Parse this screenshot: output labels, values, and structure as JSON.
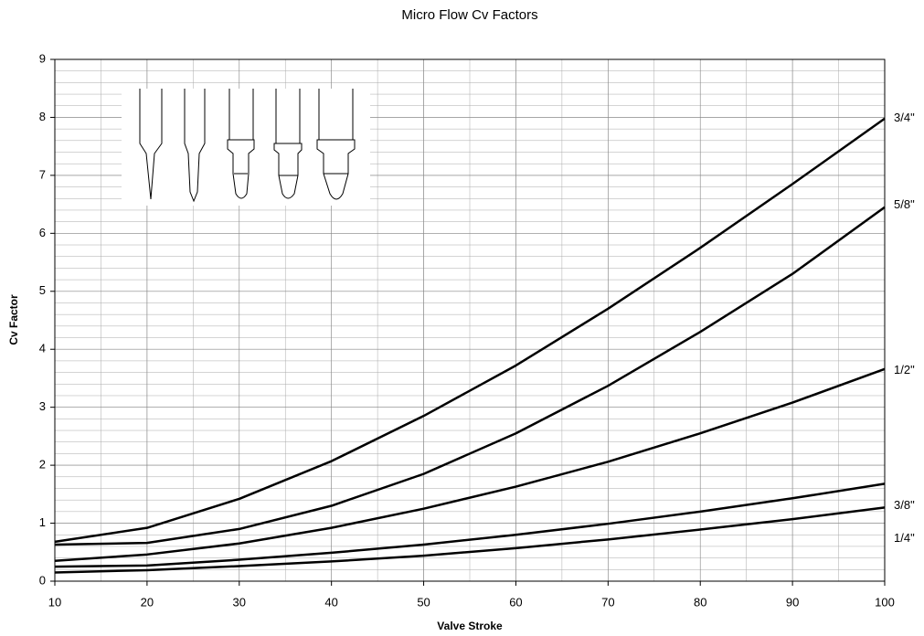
{
  "chart_data": {
    "type": "line",
    "title": "Micro Flow Cv Factors",
    "x_label": "Valve Stroke",
    "y_label": "Cv Factor",
    "x": [
      10,
      20,
      30,
      40,
      50,
      60,
      70,
      80,
      90,
      100
    ],
    "series": [
      {
        "name": "3/4\"",
        "color": "#000000",
        "values": [
          0.68,
          0.92,
          1.42,
          2.07,
          2.85,
          3.72,
          4.7,
          5.75,
          6.85,
          7.98
        ]
      },
      {
        "name": "5/8\"",
        "color": "#000000",
        "values": [
          0.63,
          0.66,
          0.9,
          1.3,
          1.85,
          2.55,
          3.37,
          4.3,
          5.3,
          6.45
        ]
      },
      {
        "name": "1/2\"",
        "color": "#000000",
        "values": [
          0.35,
          0.46,
          0.65,
          0.92,
          1.25,
          1.63,
          2.06,
          2.55,
          3.08,
          3.66
        ]
      },
      {
        "name": "3/8\"",
        "color": "#000000",
        "values": [
          0.25,
          0.27,
          0.37,
          0.49,
          0.63,
          0.8,
          0.99,
          1.2,
          1.43,
          1.68
        ]
      },
      {
        "name": "1/4\"",
        "color": "#000000",
        "values": [
          0.15,
          0.19,
          0.26,
          0.34,
          0.44,
          0.57,
          0.72,
          0.89,
          1.07,
          1.27
        ]
      }
    ],
    "xlim": [
      10,
      100
    ],
    "xticks": [
      10,
      20,
      30,
      40,
      50,
      60,
      70,
      80,
      90,
      100
    ],
    "ylim": [
      0,
      9
    ],
    "yticks": [
      0,
      1,
      2,
      3,
      4,
      5,
      6,
      7,
      8,
      9
    ],
    "grid": true,
    "minor_grid": {
      "x": 5,
      "y": 0.2
    }
  }
}
